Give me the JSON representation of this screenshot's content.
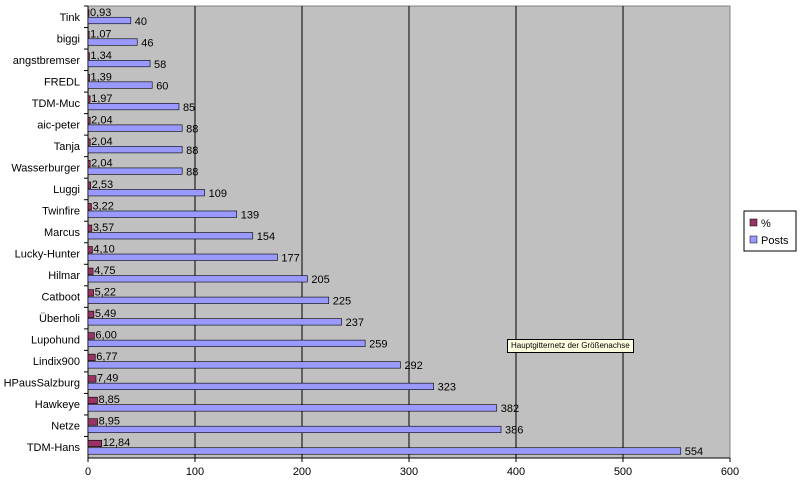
{
  "chart_data": {
    "type": "bar",
    "orientation": "horizontal",
    "categories": [
      "Tink",
      "biggi",
      "angstbremser",
      "FREDL",
      "TDM-Muc",
      "aic-peter",
      "Tanja",
      "Wasserburger",
      "Luggi",
      "Twinfire",
      "Marcus",
      "Lucky-Hunter",
      "Hilmar",
      "Catboot",
      "Überholi",
      "Lupohund",
      "Lindix900",
      "HPausSalzburg",
      "Hawkeye",
      "Netze",
      "TDM-Hans"
    ],
    "series": [
      {
        "name": "%",
        "color": "#993366",
        "values": [
          0.93,
          1.07,
          1.34,
          1.39,
          1.97,
          2.04,
          2.04,
          2.04,
          2.53,
          3.22,
          3.57,
          4.1,
          4.75,
          5.22,
          5.49,
          6.0,
          6.77,
          7.49,
          8.85,
          8.95,
          12.84
        ],
        "labels": [
          "0,93",
          "1,07",
          "1,34",
          "1,39",
          "1,97",
          "2,04",
          "2,04",
          "2,04",
          "2,53",
          "3,22",
          "3,57",
          "4,10",
          "4,75",
          "5,22",
          "5,49",
          "6,00",
          "6,77",
          "7,49",
          "8,85",
          "8,95",
          "12,84"
        ]
      },
      {
        "name": "Posts",
        "color": "#9999ff",
        "values": [
          40,
          46,
          58,
          60,
          85,
          88,
          88,
          88,
          109,
          139,
          154,
          177,
          205,
          225,
          237,
          259,
          292,
          323,
          382,
          386,
          554
        ],
        "labels": [
          "40",
          "46",
          "58",
          "60",
          "85",
          "88",
          "88",
          "88",
          "109",
          "139",
          "154",
          "177",
          "205",
          "225",
          "237",
          "259",
          "292",
          "323",
          "382",
          "386",
          "554"
        ]
      }
    ],
    "xlim": [
      0,
      600
    ],
    "xticks": [
      "0",
      "100",
      "200",
      "300",
      "400",
      "500",
      "600"
    ],
    "grid": true,
    "plot_background": "#c0c0c0",
    "legend_position": "right",
    "tooltip_text": "Hauptgitternetz der Größenachse"
  }
}
